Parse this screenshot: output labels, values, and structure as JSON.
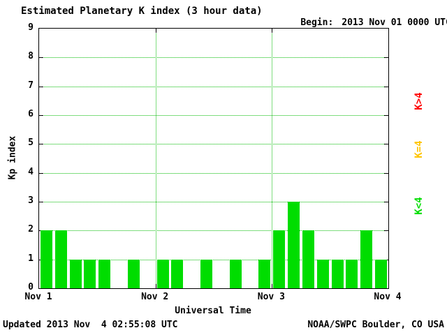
{
  "header": {
    "title": "Estimated Planetary K index (3 hour data)",
    "begin_label": "Begin:",
    "begin_value": "2013 Nov 01 0000 UTC"
  },
  "footer": {
    "updated": "Updated 2013 Nov  4 02:55:08 UTC",
    "source": "NOAA/SWPC Boulder, CO USA"
  },
  "legend": [
    {
      "label": "K>4",
      "color": "#ff0000"
    },
    {
      "label": "K=4",
      "color": "#ffc400"
    },
    {
      "label": "K<4",
      "color": "#00dd00"
    }
  ],
  "chart_data": {
    "type": "bar",
    "title": "Estimated Planetary K index (3 hour data)",
    "xlabel": "Universal Time",
    "ylabel": "Kp index",
    "ylim": [
      0,
      9
    ],
    "yticks": [
      0,
      1,
      2,
      3,
      4,
      5,
      6,
      7,
      8,
      9
    ],
    "x_tick_labels": [
      "Nov 1",
      "Nov 2",
      "Nov 3",
      "Nov 4"
    ],
    "days": 3,
    "bar_interval_hours": 3,
    "values": [
      2,
      2,
      1,
      1,
      1,
      0,
      1,
      0,
      1,
      1,
      0,
      1,
      0,
      1,
      0,
      1,
      2,
      3,
      2,
      1,
      1,
      1,
      2,
      1
    ],
    "grid": true,
    "legend_position": "right",
    "color_rule": "green if K<4, yellow if K=4, red if K>4",
    "colors": {
      "low": "#00dd00",
      "mid": "#ffc400",
      "high": "#ff0000",
      "grid": "#00bb00"
    }
  }
}
